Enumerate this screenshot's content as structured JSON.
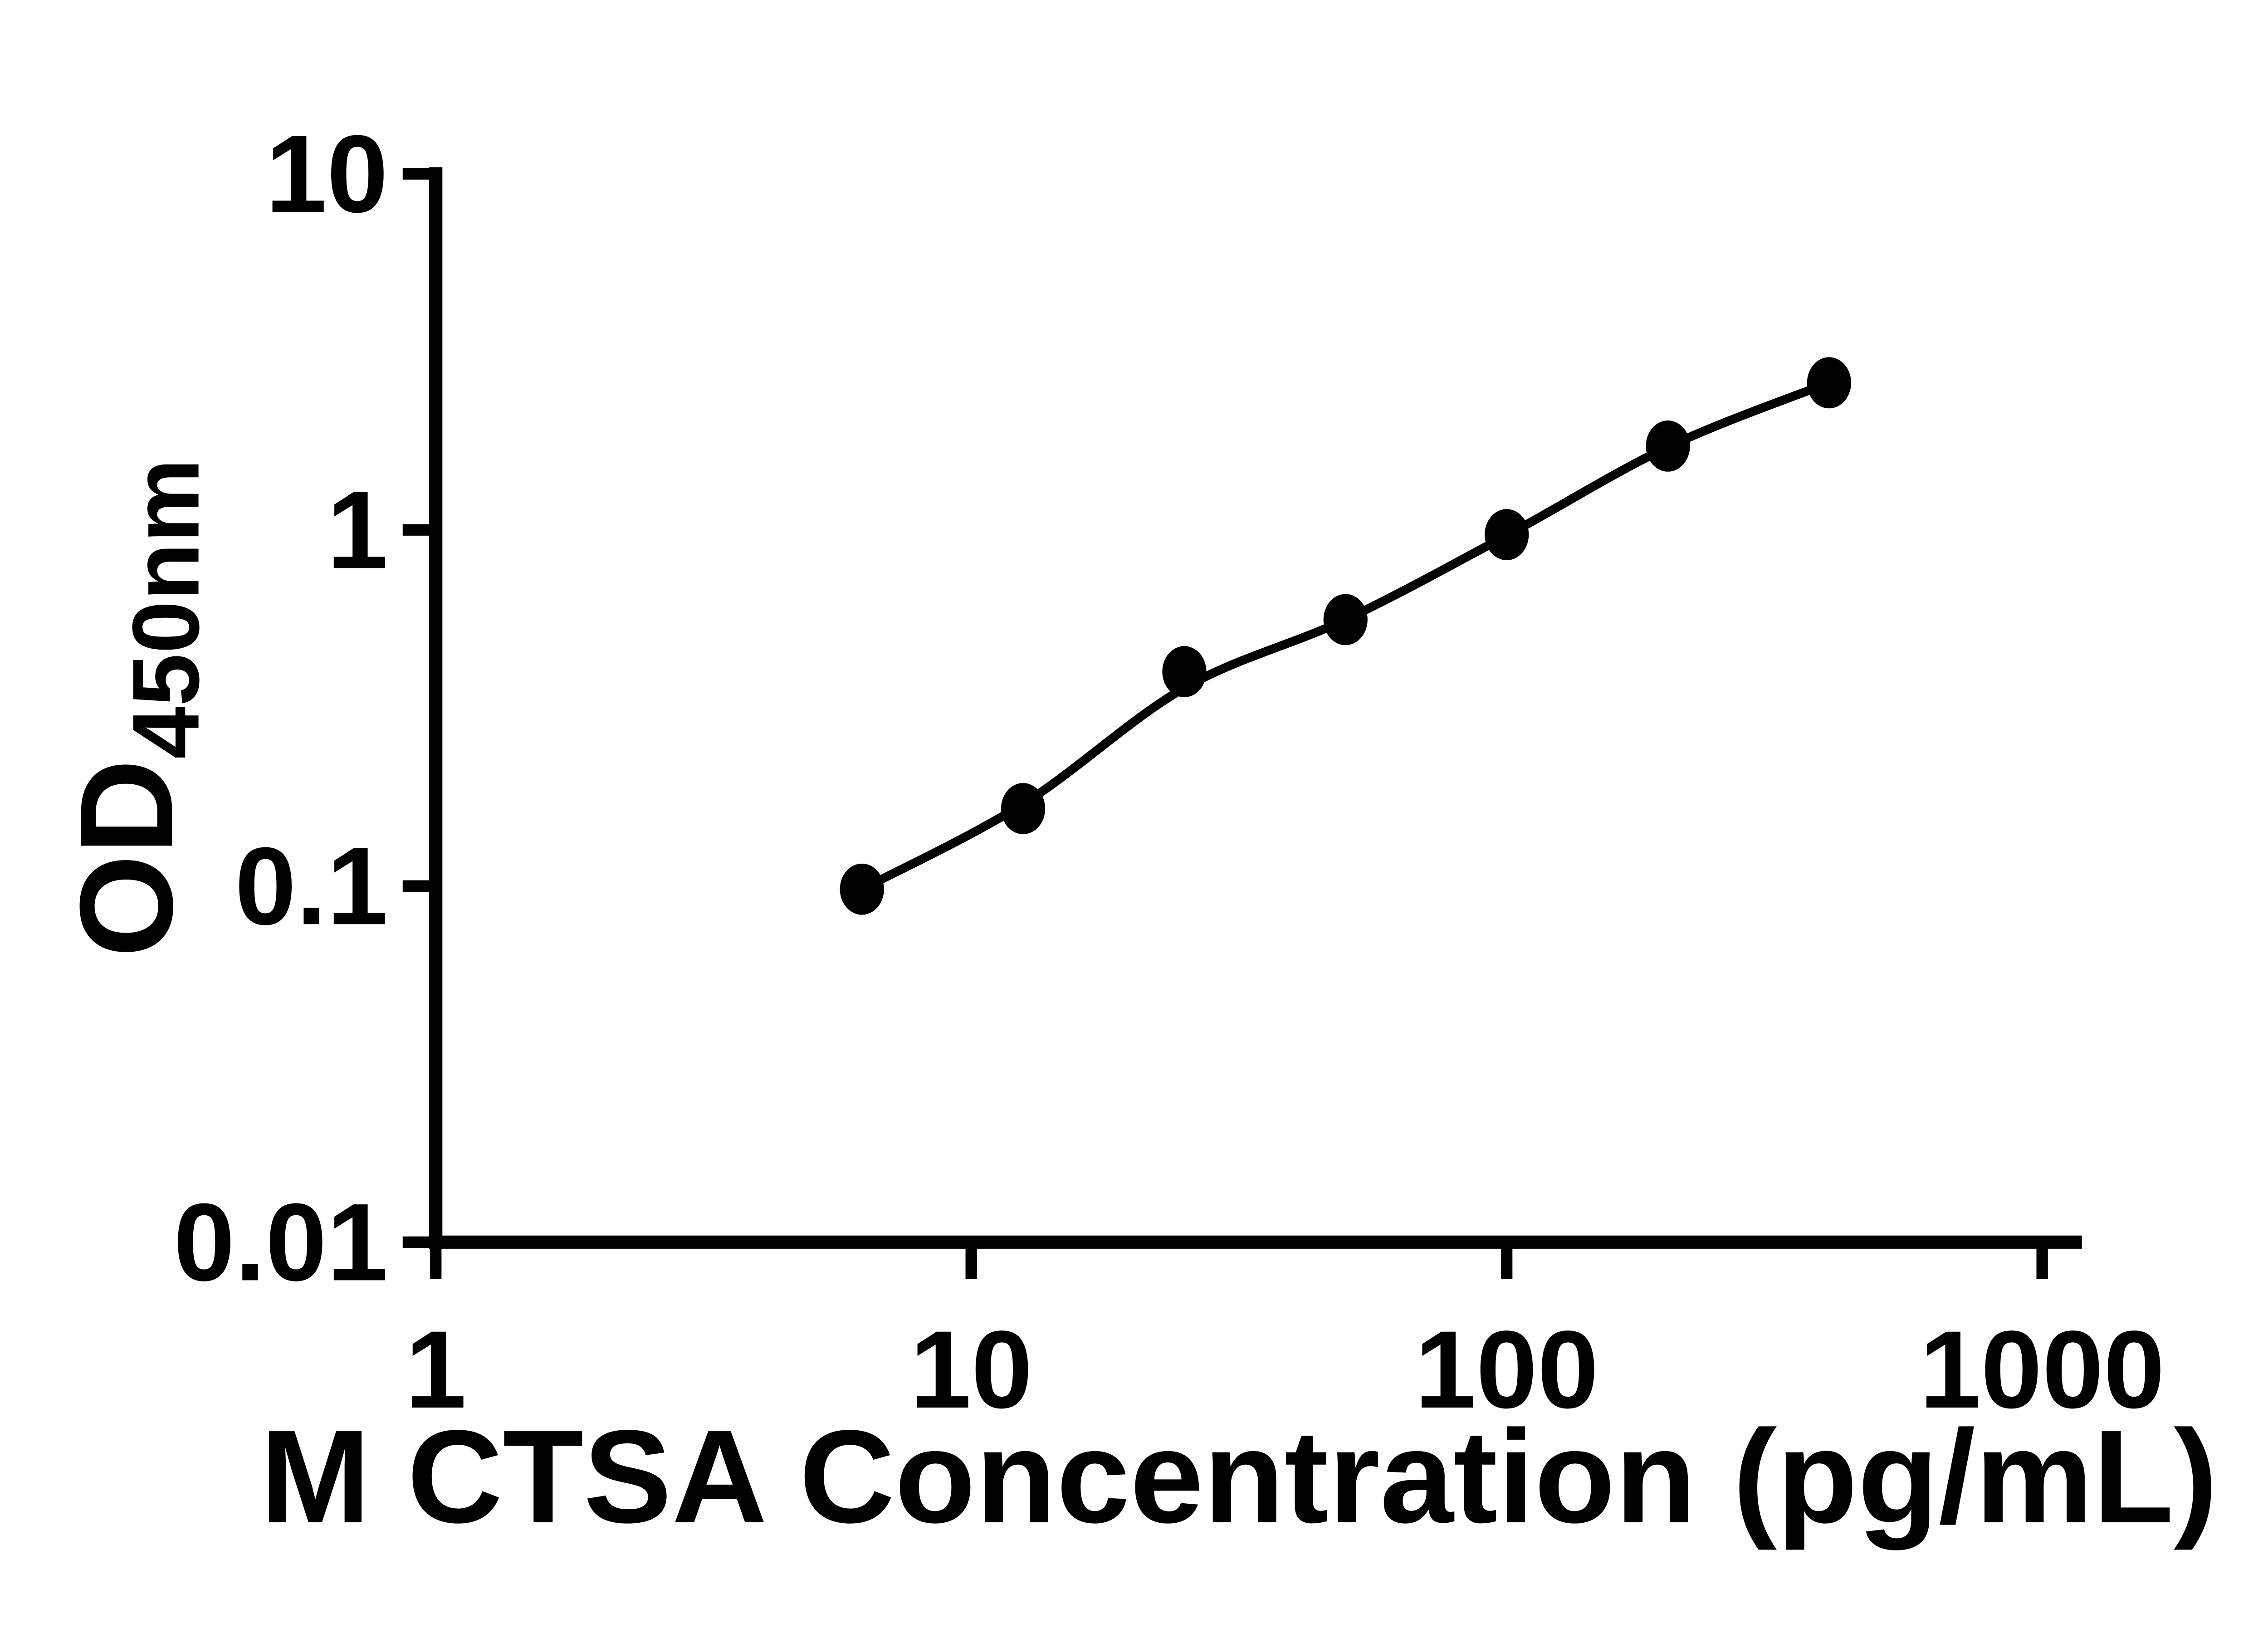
{
  "figure": {
    "background_color": "#ffffff",
    "foreground_color": "#000000"
  },
  "chart_data": {
    "type": "scatter",
    "title": "",
    "xlabel": "M CTSA Concentration (pg/mL)",
    "ylabel_main": "OD",
    "ylabel_sub": "450nm",
    "x_scale": "log",
    "y_scale": "log",
    "xlim": [
      1,
      1000
    ],
    "ylim": [
      0.01,
      10
    ],
    "x_ticks": [
      1,
      10,
      100,
      1000
    ],
    "x_tick_labels": [
      "1",
      "10",
      "100",
      "1000"
    ],
    "y_ticks": [
      0.01,
      0.1,
      1,
      10
    ],
    "y_tick_labels": [
      "0.01",
      "0.1",
      "1",
      "10"
    ],
    "grid": false,
    "legend": null,
    "series": [
      {
        "name": "standard-points",
        "marker": "filled-circle",
        "color": "#000000",
        "x": [
          6.25,
          12.5,
          25,
          50,
          100,
          200,
          400
        ],
        "y": [
          0.098,
          0.165,
          0.4,
          0.56,
          0.97,
          1.72,
          2.59
        ]
      }
    ],
    "fit_curve": {
      "name": "standard-fit-line",
      "color": "#000000",
      "x": [
        6.25,
        12.5,
        25,
        50,
        100,
        200,
        400
      ],
      "y": [
        0.098,
        0.17,
        0.36,
        0.56,
        0.965,
        1.71,
        2.59
      ]
    }
  }
}
